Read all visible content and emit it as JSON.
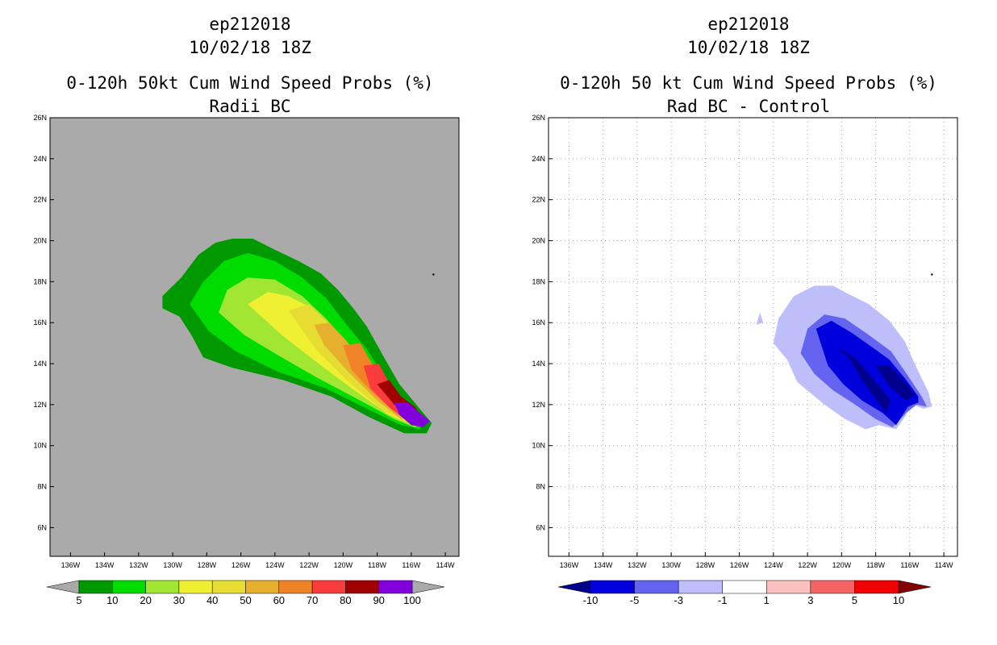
{
  "chart_data": [
    {
      "type": "filled-contour-map",
      "title_lines": [
        "ep212018",
        "10/02/18 18Z",
        "0-120h 50kt Cum Wind Speed Probs (%)",
        "Radii BC"
      ],
      "x_ticks": [
        "136W",
        "134W",
        "132W",
        "130W",
        "128W",
        "126W",
        "124W",
        "122W",
        "120W",
        "118W",
        "116W",
        "114W"
      ],
      "x_tick_values": [
        -136,
        -134,
        -132,
        -130,
        -128,
        -126,
        -124,
        -122,
        -120,
        -118,
        -116,
        -114
      ],
      "y_ticks": [
        "6N",
        "8N",
        "10N",
        "12N",
        "14N",
        "16N",
        "18N",
        "20N",
        "22N",
        "24N",
        "26N"
      ],
      "y_tick_values": [
        6,
        8,
        10,
        12,
        14,
        16,
        18,
        20,
        22,
        24,
        26
      ],
      "xlim": [
        -137.2,
        -113.2
      ],
      "ylim": [
        4.6,
        26
      ],
      "background": "#aaaaaa",
      "grid": false,
      "colorbar": {
        "labels": [
          "5",
          "10",
          "20",
          "30",
          "40",
          "50",
          "60",
          "70",
          "80",
          "90",
          "100"
        ],
        "colors": [
          "#009a00",
          "#00dc00",
          "#a0e632",
          "#f0f032",
          "#e6dc32",
          "#e6af2d",
          "#f08228",
          "#fa3c3c",
          "#a00000",
          "#8200dc"
        ],
        "end_color": "#aaaaaa"
      },
      "contours": [
        {
          "level": 5,
          "color": "#009a00",
          "points": [
            [
              -130.6,
              16.7
            ],
            [
              -130.6,
              17.3
            ],
            [
              -129.5,
              18.2
            ],
            [
              -128.5,
              19.3
            ],
            [
              -127.5,
              19.9
            ],
            [
              -126.5,
              20.1
            ],
            [
              -125.3,
              20.1
            ],
            [
              -124.1,
              19.6
            ],
            [
              -122.6,
              19.0
            ],
            [
              -121.3,
              18.4
            ],
            [
              -120.3,
              17.6
            ],
            [
              -119.4,
              16.7
            ],
            [
              -118.6,
              15.8
            ],
            [
              -117.6,
              14.3
            ],
            [
              -116.7,
              13.0
            ],
            [
              -115.5,
              11.8
            ],
            [
              -114.8,
              11.1
            ],
            [
              -115.1,
              10.6
            ],
            [
              -116.4,
              10.6
            ],
            [
              -118.5,
              11.4
            ],
            [
              -120.7,
              12.4
            ],
            [
              -123.5,
              13.2
            ],
            [
              -126.5,
              13.8
            ],
            [
              -128.2,
              14.3
            ],
            [
              -128.9,
              15.4
            ],
            [
              -129.6,
              16.3
            ]
          ]
        },
        {
          "level": 10,
          "color": "#00dc00",
          "points": [
            [
              -129.0,
              16.9
            ],
            [
              -128.2,
              18.0
            ],
            [
              -127.0,
              19.0
            ],
            [
              -125.6,
              19.4
            ],
            [
              -124.0,
              19.0
            ],
            [
              -122.4,
              18.2
            ],
            [
              -121.0,
              17.2
            ],
            [
              -119.8,
              15.9
            ],
            [
              -118.6,
              14.7
            ],
            [
              -117.7,
              13.5
            ],
            [
              -116.6,
              12.4
            ],
            [
              -115.3,
              11.2
            ],
            [
              -115.5,
              10.8
            ],
            [
              -116.6,
              11.0
            ],
            [
              -118.6,
              11.8
            ],
            [
              -121.0,
              12.8
            ],
            [
              -123.8,
              13.6
            ],
            [
              -126.3,
              14.6
            ],
            [
              -127.9,
              15.6
            ]
          ]
        },
        {
          "level": 20,
          "color": "#a0e632",
          "points": [
            [
              -127.3,
              16.5
            ],
            [
              -126.8,
              17.6
            ],
            [
              -125.6,
              18.2
            ],
            [
              -124.0,
              18.1
            ],
            [
              -122.4,
              17.3
            ],
            [
              -121.0,
              16.2
            ],
            [
              -119.8,
              15.0
            ],
            [
              -118.6,
              13.8
            ],
            [
              -117.6,
              12.8
            ],
            [
              -116.2,
              11.8
            ],
            [
              -115.1,
              11.1
            ],
            [
              -115.8,
              10.9
            ],
            [
              -117.0,
              11.3
            ],
            [
              -119.0,
              12.2
            ],
            [
              -121.5,
              13.3
            ],
            [
              -123.8,
              14.4
            ],
            [
              -125.8,
              15.4
            ]
          ]
        },
        {
          "level": 30,
          "color": "#f0f032",
          "points": [
            [
              -125.6,
              16.9
            ],
            [
              -124.4,
              17.5
            ],
            [
              -123.2,
              17.3
            ],
            [
              -121.8,
              16.7
            ],
            [
              -120.6,
              15.7
            ],
            [
              -119.4,
              14.6
            ],
            [
              -118.4,
              13.4
            ],
            [
              -117.2,
              12.3
            ],
            [
              -115.9,
              11.4
            ],
            [
              -115.1,
              11.1
            ],
            [
              -115.9,
              11.0
            ],
            [
              -117.3,
              11.5
            ],
            [
              -119.5,
              12.8
            ],
            [
              -121.6,
              14.1
            ],
            [
              -123.6,
              15.4
            ]
          ]
        },
        {
          "level": 40,
          "color": "#e6dc32",
          "points": [
            [
              -123.2,
              16.6
            ],
            [
              -122.0,
              16.9
            ],
            [
              -121.0,
              16.1
            ],
            [
              -119.8,
              15.1
            ],
            [
              -118.8,
              13.9
            ],
            [
              -117.8,
              12.8
            ],
            [
              -116.6,
              11.8
            ],
            [
              -115.4,
              11.2
            ],
            [
              -116.2,
              11.1
            ],
            [
              -117.8,
              11.8
            ],
            [
              -119.8,
              13.2
            ],
            [
              -121.6,
              14.7
            ]
          ]
        },
        {
          "level": 50,
          "color": "#e6af2d",
          "points": [
            [
              -121.7,
              15.9
            ],
            [
              -120.8,
              16.0
            ],
            [
              -119.9,
              15.2
            ],
            [
              -118.9,
              14.2
            ],
            [
              -118.1,
              13.1
            ],
            [
              -117.0,
              12.1
            ],
            [
              -115.8,
              11.4
            ],
            [
              -116.6,
              11.3
            ],
            [
              -118.0,
              12.2
            ],
            [
              -119.7,
              13.6
            ],
            [
              -121.1,
              14.9
            ]
          ]
        },
        {
          "level": 60,
          "color": "#f08228",
          "points": [
            [
              -120.0,
              14.9
            ],
            [
              -119.0,
              15.0
            ],
            [
              -118.3,
              14.0
            ],
            [
              -117.3,
              12.8
            ],
            [
              -116.2,
              11.8
            ],
            [
              -115.6,
              11.4
            ],
            [
              -116.8,
              11.5
            ],
            [
              -118.3,
              12.6
            ],
            [
              -119.5,
              13.7
            ]
          ]
        },
        {
          "level": 70,
          "color": "#fa3c3c",
          "points": [
            [
              -118.8,
              13.9
            ],
            [
              -117.9,
              14.0
            ],
            [
              -117.2,
              12.9
            ],
            [
              -116.2,
              12.0
            ],
            [
              -115.5,
              11.4
            ],
            [
              -116.3,
              11.3
            ],
            [
              -117.2,
              11.8
            ],
            [
              -118.4,
              12.8
            ]
          ]
        },
        {
          "level": 80,
          "color": "#a00000",
          "points": [
            [
              -118.0,
              13.0
            ],
            [
              -117.3,
              13.2
            ],
            [
              -116.6,
              12.4
            ],
            [
              -115.8,
              11.9
            ],
            [
              -115.4,
              11.4
            ],
            [
              -116.1,
              11.5
            ],
            [
              -117.0,
              12.0
            ]
          ]
        },
        {
          "level": 90,
          "color": "#8200dc",
          "points": [
            [
              -117.0,
              12.1
            ],
            [
              -116.2,
              12.1
            ],
            [
              -115.5,
              11.6
            ],
            [
              -114.9,
              11.2
            ],
            [
              -115.3,
              10.9
            ],
            [
              -116.0,
              11.0
            ],
            [
              -116.7,
              11.5
            ]
          ]
        }
      ],
      "markers": [
        {
          "lon": -114.7,
          "lat": 18.35
        }
      ]
    },
    {
      "type": "filled-contour-map",
      "title_lines": [
        "ep212018",
        "10/02/18 18Z",
        "0-120h 50 kt Cum Wind Speed Probs (%)",
        "Rad BC - Control"
      ],
      "x_ticks": [
        "136W",
        "134W",
        "132W",
        "130W",
        "128W",
        "126W",
        "124W",
        "122W",
        "120W",
        "118W",
        "116W",
        "114W"
      ],
      "x_tick_values": [
        -136,
        -134,
        -132,
        -130,
        -128,
        -126,
        -124,
        -122,
        -120,
        -118,
        -116,
        -114
      ],
      "y_ticks": [
        "6N",
        "8N",
        "10N",
        "12N",
        "14N",
        "16N",
        "18N",
        "20N",
        "22N",
        "24N",
        "26N"
      ],
      "y_tick_values": [
        6,
        8,
        10,
        12,
        14,
        16,
        18,
        20,
        22,
        24,
        26
      ],
      "xlim": [
        -137.2,
        -113.2
      ],
      "ylim": [
        4.6,
        26
      ],
      "background": "#ffffff",
      "grid": true,
      "colorbar": {
        "labels": [
          "-10",
          "-5",
          "-3",
          "-1",
          "1",
          "3",
          "5",
          "10"
        ],
        "colors": [
          "#0000dc",
          "#6464f0",
          "#bebefa",
          "#ffffff",
          "#fac0c0",
          "#f46464",
          "#f00000"
        ],
        "end_colors": [
          "#00008c",
          "#820000"
        ]
      },
      "contours": [
        {
          "level": -1,
          "color": "#bebefa",
          "points": [
            [
              -124.0,
              15.0
            ],
            [
              -123.7,
              16.2
            ],
            [
              -122.8,
              17.3
            ],
            [
              -121.6,
              17.8
            ],
            [
              -120.5,
              17.8
            ],
            [
              -119.6,
              17.4
            ],
            [
              -118.4,
              16.9
            ],
            [
              -117.2,
              16.1
            ],
            [
              -116.3,
              15.1
            ],
            [
              -115.6,
              13.8
            ],
            [
              -114.9,
              12.6
            ],
            [
              -114.7,
              11.9
            ],
            [
              -115.2,
              11.8
            ],
            [
              -115.8,
              12.0
            ],
            [
              -116.2,
              12.4
            ],
            [
              -116.2,
              11.5
            ],
            [
              -116.8,
              10.8
            ],
            [
              -117.8,
              11.0
            ],
            [
              -118.6,
              10.8
            ],
            [
              -119.8,
              11.3
            ],
            [
              -121.0,
              12.0
            ],
            [
              -122.6,
              13.1
            ],
            [
              -123.2,
              14.2
            ]
          ]
        },
        {
          "level": -1,
          "color": "#bebefa",
          "points": [
            [
              -125.0,
              15.9
            ],
            [
              -124.8,
              16.5
            ],
            [
              -124.6,
              16.0
            ]
          ]
        },
        {
          "level": -3,
          "color": "#6464f0",
          "points": [
            [
              -122.4,
              14.5
            ],
            [
              -122.0,
              15.7
            ],
            [
              -121.0,
              16.4
            ],
            [
              -119.8,
              16.2
            ],
            [
              -118.4,
              15.4
            ],
            [
              -117.1,
              14.6
            ],
            [
              -116.1,
              13.4
            ],
            [
              -115.3,
              12.4
            ],
            [
              -115.0,
              11.9
            ],
            [
              -115.6,
              12.0
            ],
            [
              -116.2,
              11.6
            ],
            [
              -117.0,
              10.9
            ],
            [
              -118.0,
              11.3
            ],
            [
              -119.2,
              12.0
            ],
            [
              -120.5,
              12.7
            ],
            [
              -121.6,
              13.5
            ]
          ]
        },
        {
          "level": -5,
          "color": "#0000dc",
          "points": [
            [
              -121.5,
              15.7
            ],
            [
              -120.6,
              16.1
            ],
            [
              -119.4,
              15.5
            ],
            [
              -118.2,
              14.8
            ],
            [
              -117.2,
              14.2
            ],
            [
              -116.2,
              13.2
            ],
            [
              -115.5,
              12.4
            ],
            [
              -115.5,
              12.1
            ],
            [
              -116.1,
              11.9
            ],
            [
              -116.8,
              11.0
            ],
            [
              -117.6,
              11.6
            ],
            [
              -118.8,
              12.2
            ],
            [
              -119.9,
              13.0
            ],
            [
              -120.8,
              13.9
            ]
          ]
        },
        {
          "level": -10,
          "color": "#00008c",
          "points": [
            [
              -120.4,
              14.9
            ],
            [
              -119.6,
              14.3
            ],
            [
              -118.8,
              13.2
            ],
            [
              -118.0,
              12.3
            ],
            [
              -117.4,
              11.6
            ],
            [
              -117.1,
              12.2
            ],
            [
              -118.1,
              13.2
            ],
            [
              -119.1,
              14.2
            ]
          ]
        },
        {
          "level": -10,
          "color": "#00008c",
          "points": [
            [
              -118.0,
              13.9
            ],
            [
              -117.2,
              13.9
            ],
            [
              -116.4,
              13.2
            ],
            [
              -115.7,
              12.5
            ],
            [
              -116.2,
              12.2
            ],
            [
              -117.2,
              12.9
            ]
          ]
        }
      ],
      "markers": [
        {
          "lon": -114.7,
          "lat": 18.35
        }
      ]
    }
  ]
}
